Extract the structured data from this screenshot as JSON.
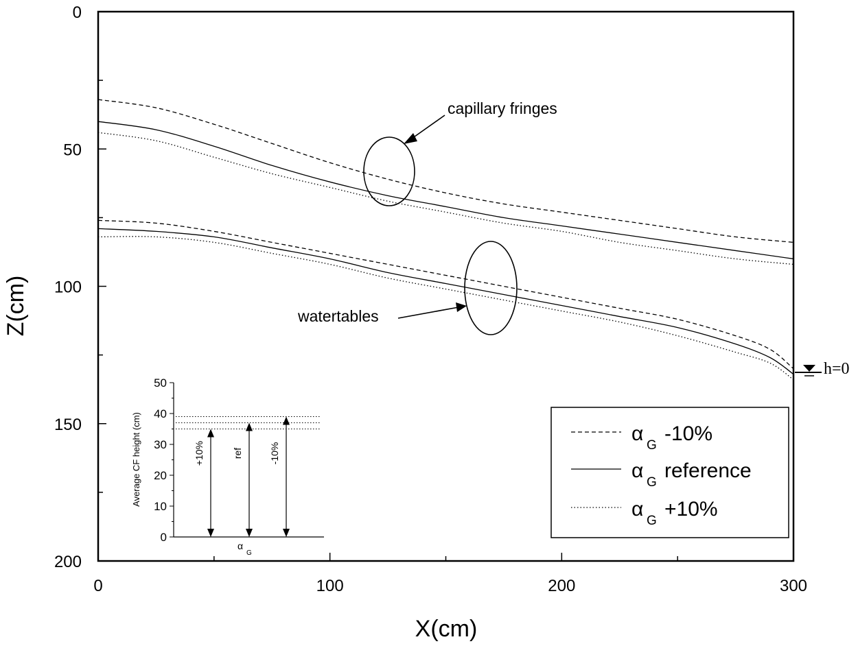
{
  "chart_data": {
    "type": "line",
    "title": "",
    "xlabel": "X(cm)",
    "ylabel": "Z(cm)",
    "xlim": [
      0,
      300
    ],
    "ylim": [
      200,
      0
    ],
    "y_inverted": true,
    "x_ticks": [
      "0",
      "100",
      "200",
      "300"
    ],
    "y_ticks": [
      "0",
      "50",
      "100",
      "150",
      "200"
    ],
    "grid": false,
    "legend_position": "bottom-right",
    "series": [
      {
        "name": "-10%",
        "legend_symbol": "α",
        "legend_subscript": "G",
        "legend_label": "-10%",
        "style": "dashed",
        "group": "capillary fringes",
        "x": [
          0,
          25,
          50,
          75,
          100,
          125,
          150,
          175,
          200,
          225,
          250,
          275,
          300
        ],
        "y": [
          32,
          35,
          41,
          48,
          55,
          61,
          66,
          70,
          73,
          76,
          79,
          82,
          84
        ]
      },
      {
        "name": "reference",
        "legend_symbol": "α",
        "legend_subscript": "G",
        "legend_label": "reference",
        "style": "solid",
        "group": "capillary fringes",
        "x": [
          0,
          25,
          50,
          75,
          100,
          125,
          150,
          175,
          200,
          225,
          250,
          275,
          300
        ],
        "y": [
          40,
          43,
          49,
          56,
          62,
          67,
          71,
          75,
          78,
          81,
          84,
          87,
          90
        ]
      },
      {
        "name": "+10%",
        "legend_symbol": "α",
        "legend_subscript": "G",
        "legend_label": "+10%",
        "style": "dotted",
        "group": "capillary fringes",
        "x": [
          0,
          25,
          50,
          75,
          100,
          125,
          150,
          175,
          200,
          225,
          250,
          275,
          300
        ],
        "y": [
          44,
          47,
          53,
          59,
          64,
          69,
          73,
          77,
          80,
          84,
          87,
          90,
          92
        ]
      },
      {
        "name": "-10%",
        "style": "dashed",
        "group": "watertables",
        "x": [
          0,
          25,
          50,
          75,
          100,
          125,
          150,
          175,
          200,
          225,
          250,
          275,
          290,
          300
        ],
        "y": [
          76,
          77,
          80,
          84,
          88,
          92,
          96,
          100,
          104,
          108,
          112,
          118,
          123,
          130
        ]
      },
      {
        "name": "reference",
        "style": "solid",
        "group": "watertables",
        "x": [
          0,
          25,
          50,
          75,
          100,
          125,
          150,
          175,
          200,
          225,
          250,
          275,
          290,
          300
        ],
        "y": [
          79,
          80,
          82,
          86,
          90,
          95,
          99,
          103,
          107,
          111,
          115,
          121,
          126,
          132
        ]
      },
      {
        "name": "+10%",
        "style": "dotted",
        "group": "watertables",
        "x": [
          0,
          25,
          50,
          75,
          100,
          125,
          150,
          175,
          200,
          225,
          250,
          275,
          290,
          300
        ],
        "y": [
          82,
          82,
          84,
          88,
          92,
          97,
          101,
          105,
          109,
          113,
          118,
          124,
          128,
          134
        ]
      }
    ],
    "annotations": [
      {
        "text": "capillary fringes",
        "target_x": 125,
        "target_y": 58
      },
      {
        "text": "watertables",
        "target_x": 170,
        "target_y": 100
      },
      {
        "text": "h=0",
        "target_x": 300,
        "target_y": 132
      }
    ],
    "inset": {
      "type": "bar",
      "ylabel": "Average CF height (cm)",
      "xlabel": "α",
      "xlabel_subscript": "G",
      "ylim": [
        0,
        50
      ],
      "y_ticks": [
        "0",
        "10",
        "20",
        "30",
        "40",
        "50"
      ],
      "categories": [
        "+10%",
        "ref",
        "-10%"
      ],
      "values": [
        35,
        37,
        39
      ]
    }
  }
}
